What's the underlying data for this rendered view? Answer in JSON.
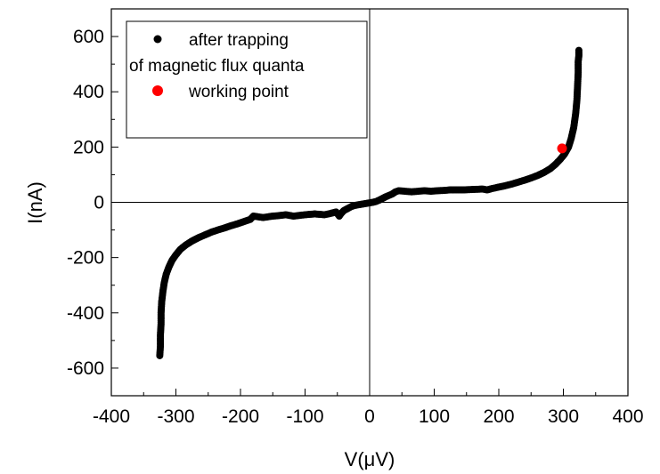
{
  "chart_data": {
    "type": "scatter",
    "xlabel": "V(μV)",
    "ylabel": "I(nA)",
    "xlim": [
      -400,
      400
    ],
    "ylim": [
      -700,
      700
    ],
    "xticks": [
      -400,
      -300,
      -200,
      -100,
      0,
      100,
      200,
      300,
      400
    ],
    "xtick_labels": [
      "-400",
      "-300",
      "-200",
      "-100",
      "0",
      "100",
      "200",
      "300",
      "400"
    ],
    "yticks": [
      -600,
      -400,
      -200,
      0,
      200,
      400,
      600
    ],
    "ytick_labels": [
      "-600",
      "-400",
      "-200",
      "0",
      "200",
      "400",
      "600"
    ],
    "grid": false,
    "zero_lines": true,
    "legend_position": "top-left",
    "legend": [
      {
        "label": "after trapping",
        "marker": "small-dot",
        "color": "#000000"
      },
      {
        "label": "of magnetic flux quanta",
        "marker": "none",
        "color": "#000000"
      },
      {
        "label": "working point",
        "marker": "large-dot",
        "color": "#ff0000"
      }
    ],
    "series": [
      {
        "label_ref": "after trapping",
        "color": "#000000",
        "points": [
          [
            -325,
            -555
          ],
          [
            -324,
            -520
          ],
          [
            -324,
            -480
          ],
          [
            -323,
            -440
          ],
          [
            -323,
            -400
          ],
          [
            -322,
            -360
          ],
          [
            -320,
            -320
          ],
          [
            -318,
            -290
          ],
          [
            -315,
            -260
          ],
          [
            -311,
            -235
          ],
          [
            -306,
            -210
          ],
          [
            -300,
            -190
          ],
          [
            -293,
            -170
          ],
          [
            -285,
            -155
          ],
          [
            -275,
            -140
          ],
          [
            -265,
            -128
          ],
          [
            -255,
            -118
          ],
          [
            -245,
            -108
          ],
          [
            -235,
            -100
          ],
          [
            -225,
            -93
          ],
          [
            -215,
            -85
          ],
          [
            -205,
            -78
          ],
          [
            -195,
            -70
          ],
          [
            -185,
            -62
          ],
          [
            -180,
            -50
          ],
          [
            -165,
            -55
          ],
          [
            -150,
            -50
          ],
          [
            -140,
            -48
          ],
          [
            -130,
            -45
          ],
          [
            -118,
            -50
          ],
          [
            -100,
            -45
          ],
          [
            -85,
            -42
          ],
          [
            -70,
            -45
          ],
          [
            -60,
            -40
          ],
          [
            -52,
            -35
          ],
          [
            -47,
            -50
          ],
          [
            -44,
            -40
          ],
          [
            -40,
            -30
          ],
          [
            -36,
            -25
          ],
          [
            -32,
            -20
          ],
          [
            -28,
            -15
          ],
          [
            -24,
            -12
          ],
          [
            -20,
            -10
          ],
          [
            -15,
            -8
          ],
          [
            -10,
            -6
          ],
          [
            -5,
            -4
          ],
          [
            0,
            -2
          ],
          [
            5,
            0
          ],
          [
            10,
            3
          ],
          [
            15,
            8
          ],
          [
            20,
            14
          ],
          [
            25,
            20
          ],
          [
            30,
            25
          ],
          [
            35,
            30
          ],
          [
            40,
            38
          ],
          [
            45,
            42
          ],
          [
            55,
            40
          ],
          [
            65,
            38
          ],
          [
            75,
            40
          ],
          [
            85,
            42
          ],
          [
            95,
            40
          ],
          [
            105,
            42
          ],
          [
            115,
            43
          ],
          [
            125,
            45
          ],
          [
            135,
            45
          ],
          [
            145,
            45
          ],
          [
            155,
            46
          ],
          [
            165,
            47
          ],
          [
            175,
            48
          ],
          [
            182,
            45
          ],
          [
            190,
            50
          ],
          [
            200,
            55
          ],
          [
            210,
            60
          ],
          [
            220,
            66
          ],
          [
            230,
            73
          ],
          [
            240,
            80
          ],
          [
            250,
            88
          ],
          [
            260,
            97
          ],
          [
            270,
            108
          ],
          [
            280,
            122
          ],
          [
            288,
            138
          ],
          [
            295,
            155
          ],
          [
            302,
            175
          ],
          [
            308,
            200
          ],
          [
            312,
            230
          ],
          [
            316,
            270
          ],
          [
            319,
            320
          ],
          [
            321,
            370
          ],
          [
            322,
            420
          ],
          [
            323,
            470
          ],
          [
            323,
            510
          ],
          [
            324,
            530
          ],
          [
            324,
            550
          ]
        ]
      },
      {
        "label_ref": "working point",
        "color": "#ff0000",
        "points": [
          [
            298,
            195
          ]
        ]
      }
    ]
  }
}
